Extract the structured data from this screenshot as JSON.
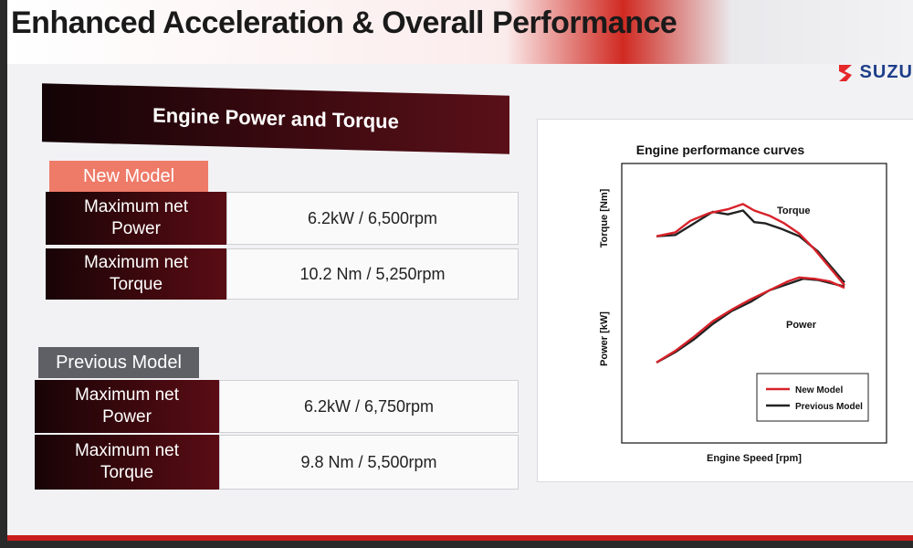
{
  "slide": {
    "title": "Enhanced Acceleration & Overall Performance",
    "logo_text": "SUZU",
    "section_title": "Engine Power and Torque"
  },
  "new_model": {
    "tag": "New Model",
    "rows": [
      {
        "label_line1": "Maximum net",
        "label_line2": "Power",
        "value": "6.2kW / 6,500rpm"
      },
      {
        "label_line1": "Maximum net",
        "label_line2": "Torque",
        "value": "10.2 Nm / 5,250rpm"
      }
    ]
  },
  "previous_model": {
    "tag": "Previous Model",
    "rows": [
      {
        "label_line1": "Maximum net",
        "label_line2": "Power",
        "value": "6.2kW / 6,750rpm"
      },
      {
        "label_line1": "Maximum net",
        "label_line2": "Torque",
        "value": "9.8 Nm / 5,500rpm"
      }
    ]
  },
  "colors": {
    "accent_red": "#c81e1e",
    "dark_maroon": "#3c0a10",
    "new_model_line": "#d8222a",
    "previous_model_line": "#222222"
  },
  "chart_data": {
    "type": "line",
    "title": "Engine performance curves",
    "xlabel": "Engine Speed [rpm]",
    "ylabel_top": "Torque [Nm]",
    "ylabel_bottom": "Power [kW]",
    "xlim": [
      0,
      100
    ],
    "ylim": [
      0,
      100
    ],
    "curve_labels": {
      "torque": "Torque",
      "power": "Power"
    },
    "legend": {
      "position": "bottom-right",
      "entries": [
        "New Model",
        "Previous Model"
      ]
    },
    "series": [
      {
        "name": "New Model",
        "curve": "Torque",
        "x": [
          0,
          10,
          18,
          28,
          38,
          46,
          52,
          60,
          68,
          76,
          84,
          92,
          100
        ],
        "y": [
          76,
          77.5,
          82,
          85,
          86.5,
          88.5,
          86,
          84,
          81,
          77,
          71,
          64,
          57
        ]
      },
      {
        "name": "Previous Model",
        "curve": "Torque",
        "x": [
          0,
          10,
          20,
          30,
          38,
          46,
          52,
          58,
          66,
          76,
          86,
          100
        ],
        "y": [
          76,
          76.5,
          81,
          85.5,
          84.5,
          86,
          81.5,
          81,
          79,
          76,
          70,
          58
        ]
      },
      {
        "name": "New Model",
        "curve": "Power",
        "x": [
          0,
          10,
          20,
          30,
          40,
          50,
          60,
          70,
          76,
          84,
          92,
          100
        ],
        "y": [
          27,
          31.5,
          37,
          43,
          47.5,
          51.5,
          55,
          58.5,
          60,
          59.5,
          58.5,
          56
        ]
      },
      {
        "name": "Previous Model",
        "curve": "Power",
        "x": [
          0,
          10,
          20,
          30,
          40,
          50,
          60,
          70,
          78,
          86,
          100
        ],
        "y": [
          27,
          31,
          36,
          42,
          47,
          50.5,
          55,
          57.5,
          59.5,
          59,
          56.5
        ]
      }
    ]
  }
}
